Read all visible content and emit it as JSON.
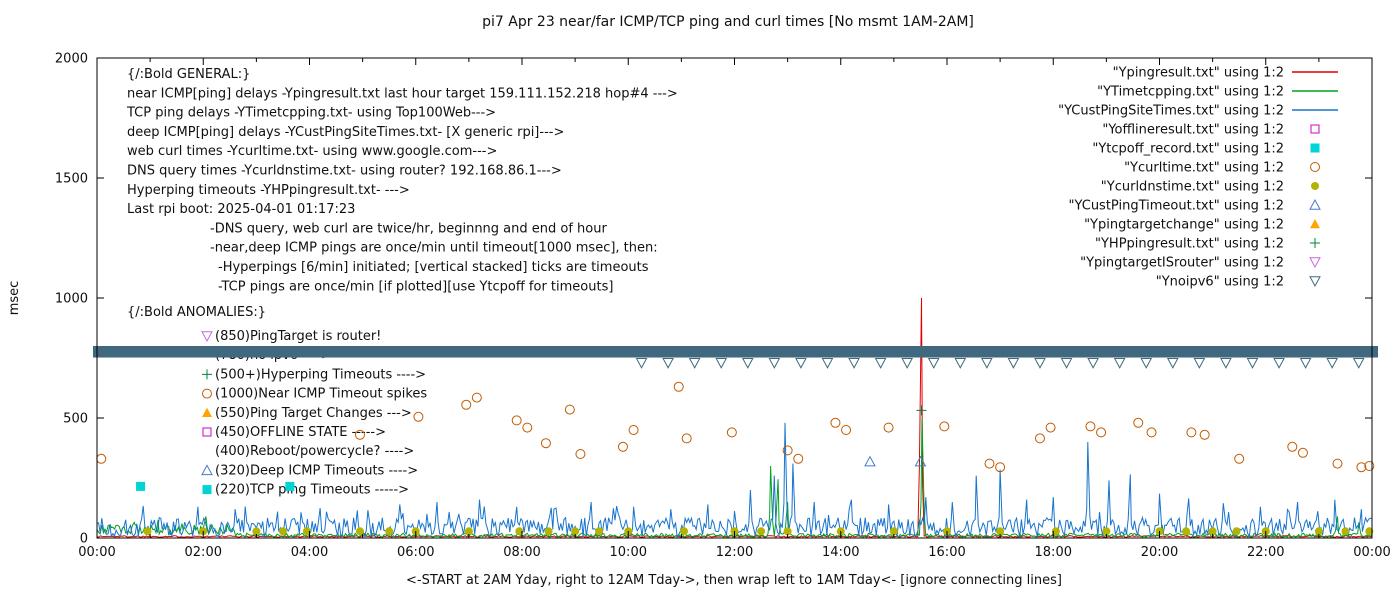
{
  "chart_data": {
    "type": "line",
    "title": "pi7 Apr 23  near/far ICMP/TCP ping and curl times [No msmt 1AM-2AM]",
    "xlabel": "<-START at 2AM Yday, right to 12AM Tday->, then wrap left to 1AM Tday<- [ignore connecting lines]",
    "ylabel": "msec",
    "x_unit": "hours",
    "xlim": [
      0,
      24
    ],
    "ylim": [
      0,
      2000
    ],
    "y_ticks": [
      0,
      500,
      1000,
      1500,
      2000
    ],
    "x_tick_labels": [
      "00:00",
      "02:00",
      "04:00",
      "06:00",
      "08:00",
      "10:00",
      "12:00",
      "14:00",
      "16:00",
      "18:00",
      "20:00",
      "22:00",
      "00:00"
    ],
    "grid": false,
    "legend_position": "top-right",
    "lines": [
      {
        "name": "Ypingresult.txt",
        "color": "#e00000",
        "baseline": [
          3,
          10
        ],
        "spikes": [
          [
            15.52,
            1000
          ]
        ]
      },
      {
        "name": "YTimetcpping.txt",
        "color": "#00a020",
        "baseline": [
          3,
          20
        ],
        "segments": [
          {
            "from": 0,
            "to": 2.6,
            "min": 12,
            "max": 55
          }
        ],
        "spikes": [
          [
            0.25,
            55
          ],
          [
            0.7,
            65
          ],
          [
            1.15,
            75
          ],
          [
            1.6,
            60
          ],
          [
            2.05,
            90
          ],
          [
            2.45,
            55
          ],
          [
            12.68,
            300
          ],
          [
            12.82,
            245
          ],
          [
            13.0,
            150
          ],
          [
            15.53,
            500
          ],
          [
            20.05,
            55
          ],
          [
            23.35,
            90
          ],
          [
            23.75,
            65
          ]
        ]
      },
      {
        "name": "YCustPingSiteTimes.txt",
        "color": "#1874cd",
        "baseline": [
          6,
          85
        ],
        "burst": {
          "p": 0.07,
          "mult": 1.6
        },
        "spikes": [
          [
            1.9,
            130
          ],
          [
            2.6,
            120
          ],
          [
            3.4,
            110
          ],
          [
            4.2,
            125
          ],
          [
            4.9,
            115
          ],
          [
            5.7,
            140
          ],
          [
            6.4,
            150
          ],
          [
            7.2,
            160
          ],
          [
            7.9,
            130
          ],
          [
            8.6,
            120
          ],
          [
            9.3,
            150
          ],
          [
            10.1,
            130
          ],
          [
            10.8,
            120
          ],
          [
            11.5,
            140
          ],
          [
            12.3,
            200
          ],
          [
            12.75,
            260
          ],
          [
            12.95,
            480
          ],
          [
            13.1,
            310
          ],
          [
            13.5,
            150
          ],
          [
            14.2,
            160
          ],
          [
            14.9,
            140
          ],
          [
            15.6,
            170
          ],
          [
            16.1,
            150
          ],
          [
            16.55,
            260
          ],
          [
            17.0,
            285
          ],
          [
            17.5,
            160
          ],
          [
            18.0,
            170
          ],
          [
            18.65,
            400
          ],
          [
            19.05,
            240
          ],
          [
            19.45,
            265
          ],
          [
            20.0,
            185
          ],
          [
            20.55,
            165
          ],
          [
            21.2,
            145
          ],
          [
            21.9,
            130
          ],
          [
            22.6,
            150
          ],
          [
            23.3,
            160
          ],
          [
            23.8,
            120
          ]
        ]
      }
    ],
    "points": [
      {
        "name": "Ycurltime.txt",
        "marker": "circle-open",
        "color": "#c05a00",
        "data": [
          [
            0.08,
            330
          ],
          [
            4.95,
            430
          ],
          [
            6.05,
            505
          ],
          [
            6.95,
            555
          ],
          [
            7.15,
            585
          ],
          [
            7.9,
            490
          ],
          [
            8.1,
            460
          ],
          [
            8.45,
            395
          ],
          [
            8.9,
            535
          ],
          [
            9.1,
            350
          ],
          [
            9.9,
            380
          ],
          [
            10.1,
            450
          ],
          [
            10.95,
            630
          ],
          [
            11.1,
            415
          ],
          [
            11.95,
            440
          ],
          [
            13.0,
            365
          ],
          [
            13.2,
            330
          ],
          [
            13.9,
            480
          ],
          [
            14.1,
            450
          ],
          [
            14.9,
            460
          ],
          [
            15.95,
            465
          ],
          [
            16.8,
            310
          ],
          [
            17.0,
            295
          ],
          [
            17.75,
            415
          ],
          [
            17.95,
            460
          ],
          [
            18.7,
            465
          ],
          [
            18.9,
            440
          ],
          [
            19.6,
            480
          ],
          [
            19.85,
            440
          ],
          [
            20.6,
            440
          ],
          [
            20.85,
            430
          ],
          [
            21.5,
            330
          ],
          [
            22.5,
            380
          ],
          [
            22.7,
            355
          ],
          [
            23.35,
            310
          ],
          [
            23.8,
            295
          ],
          [
            23.95,
            300
          ]
        ]
      },
      {
        "name": "Ycurldnstime.txt",
        "marker": "circle-filled",
        "color": "#b4b400",
        "value": 28,
        "hours": [
          0.95,
          2.0,
          3.0,
          3.5,
          3.95,
          4.95,
          5.5,
          6.0,
          7.0,
          7.95,
          8.5,
          9.0,
          9.45,
          10.0,
          11.05,
          12.0,
          12.5,
          13.0,
          14.0,
          15.0,
          16.0,
          17.0,
          18.05,
          19.0,
          20.0,
          20.5,
          21.0,
          21.45,
          22.0,
          23.0,
          23.5,
          23.95
        ]
      },
      {
        "name": "Ytcpoff_record.txt",
        "marker": "square-filled",
        "color": "#00d4d4",
        "data": [
          [
            0.82,
            215
          ],
          [
            3.63,
            215
          ]
        ]
      },
      {
        "name": "YCustPingTimeout.txt",
        "marker": "triangle-up-open",
        "color": "#4878cd",
        "data": [
          [
            14.55,
            318
          ],
          [
            15.5,
            318
          ]
        ]
      },
      {
        "name": "YHPpingresult.txt",
        "marker": "plus",
        "color": "#008040",
        "data": [
          [
            15.52,
            532
          ]
        ]
      }
    ],
    "band": {
      "name": "Ynoipv6",
      "color": "#40687f",
      "y_from": 752,
      "y_to": 800,
      "tick_y": 730,
      "tick_start": 10.25,
      "tick_end": 23.95,
      "tick_step": 0.5
    }
  },
  "legend": {
    "entries": [
      {
        "label": "\"Ypingresult.txt\" using 1:2",
        "marker": "line",
        "color": "#e00000"
      },
      {
        "label": "\"YTimetcpping.txt\" using 1:2",
        "marker": "line",
        "color": "#00a020"
      },
      {
        "label": "\"YCustPingSiteTimes.txt\" using 1:2",
        "marker": "line",
        "color": "#1874cd"
      },
      {
        "label": "\"Yofflineresult.txt\" using 1:2",
        "marker": "square-open",
        "color": "#d000d0"
      },
      {
        "label": "\"Ytcpoff_record.txt\" using 1:2",
        "marker": "square-filled",
        "color": "#00d4d4"
      },
      {
        "label": "\"Ycurltime.txt\" using 1:2",
        "marker": "circle-open",
        "color": "#c05a00"
      },
      {
        "label": "\"Ycurldnstime.txt\" using 1:2",
        "marker": "circle-filled",
        "color": "#b4b400"
      },
      {
        "label": "\"YCustPingTimeout.txt\" using 1:2",
        "marker": "triangle-up-open",
        "color": "#4878cd"
      },
      {
        "label": "\"Ypingtargetchange\" using 1:2",
        "marker": "triangle-up-filled",
        "color": "#ffa500"
      },
      {
        "label": "\"YHPpingresult.txt\" using 1:2",
        "marker": "plus",
        "color": "#008040"
      },
      {
        "label": "\"YpingtargetISrouter\" using 1:2",
        "marker": "triangle-down-open",
        "color": "#c36ae0"
      },
      {
        "label": "\"Ynoipv6\" using 1:2",
        "marker": "triangle-down-open",
        "color": "#40687f"
      }
    ]
  },
  "annotations": {
    "general": [
      {
        "indent": 0,
        "text": "{/:Bold GENERAL:}"
      },
      {
        "indent": 0,
        "text": "near ICMP[ping] delays -Ypingresult.txt last hour target 159.111.152.218 hop#4 --->"
      },
      {
        "indent": 0,
        "text": "TCP ping delays -YTimetcpping.txt- using Top100Web--->"
      },
      {
        "indent": 0,
        "text": "deep ICMP[ping] delays -YCustPingSiteTimes.txt- [X generic rpi]--->"
      },
      {
        "indent": 0,
        "text": "web curl times -Ycurltime.txt- using www.google.com--->"
      },
      {
        "indent": 0,
        "text": "DNS query times -Ycurldnstime.txt- using router? 192.168.86.1--->"
      },
      {
        "indent": 0,
        "text": "Hyperping timeouts -YHPpingresult.txt- --->"
      },
      {
        "indent": 0,
        "text": "Last rpi boot: 2025-04-01 01:17:23"
      },
      {
        "indent": 1,
        "text": "-DNS query, web curl are twice/hr, beginnng and end of hour"
      },
      {
        "indent": 1,
        "text": "-near,deep ICMP pings are once/min until timeout[1000 msec], then:"
      },
      {
        "indent": 2,
        "text": "-Hyperpings [6/min] initiated; [vertical stacked] ticks are timeouts"
      },
      {
        "indent": 2,
        "text": "-TCP pings are once/min [if plotted][use Ytcpoff for timeouts]"
      }
    ],
    "anomalies": {
      "header": "{/:Bold ANOMALIES:}",
      "items": [
        {
          "marker": "triangle-down-open",
          "color": "#c36ae0",
          "text": "(850)PingTarget is router!"
        },
        {
          "marker": "none",
          "color": "",
          "text": "(780)no ipv6 ---->",
          "obscured_by_band": true
        },
        {
          "marker": "plus",
          "color": "#008040",
          "text": "(500+)Hyperping Timeouts ---->"
        },
        {
          "marker": "circle-open",
          "color": "#c05a00",
          "text": "(1000)Near ICMP Timeout spikes"
        },
        {
          "marker": "triangle-up-filled",
          "color": "#ffa500",
          "text": "(550)Ping Target Changes --->"
        },
        {
          "marker": "square-open",
          "color": "#d000d0",
          "text": "(450)OFFLINE STATE ----->"
        },
        {
          "marker": "none",
          "color": "",
          "text": "(400)Reboot/powercycle? ---->"
        },
        {
          "marker": "triangle-up-open",
          "color": "#4878cd",
          "text": "(320)Deep ICMP Timeouts ---->"
        },
        {
          "marker": "square-filled",
          "color": "#00d4d4",
          "text": "(220)TCP ping Timeouts ----->"
        }
      ]
    }
  }
}
